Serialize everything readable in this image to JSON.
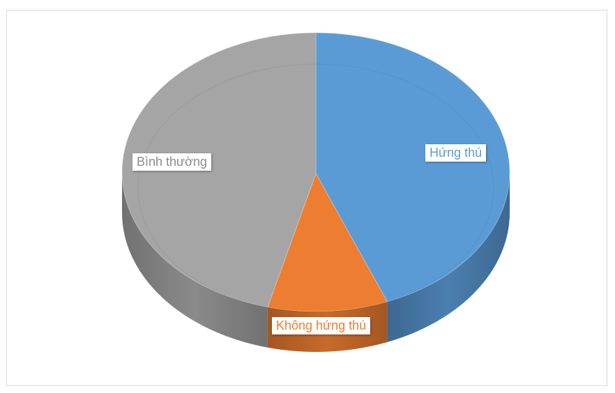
{
  "chart_data": {
    "type": "pie",
    "title": "",
    "slices": [
      {
        "label": "Hứng thú",
        "value": 44,
        "color": "#5b9bd5",
        "side": "#4a7fb0"
      },
      {
        "label": "Không hứng thú",
        "value": 10,
        "color": "#ed7d31",
        "side": "#c86a2a"
      },
      {
        "label": "Bình thường",
        "value": 46,
        "color": "#a5a5a5",
        "side": "#8a8a8a"
      }
    ],
    "legend": "none",
    "data_labels": "category"
  }
}
